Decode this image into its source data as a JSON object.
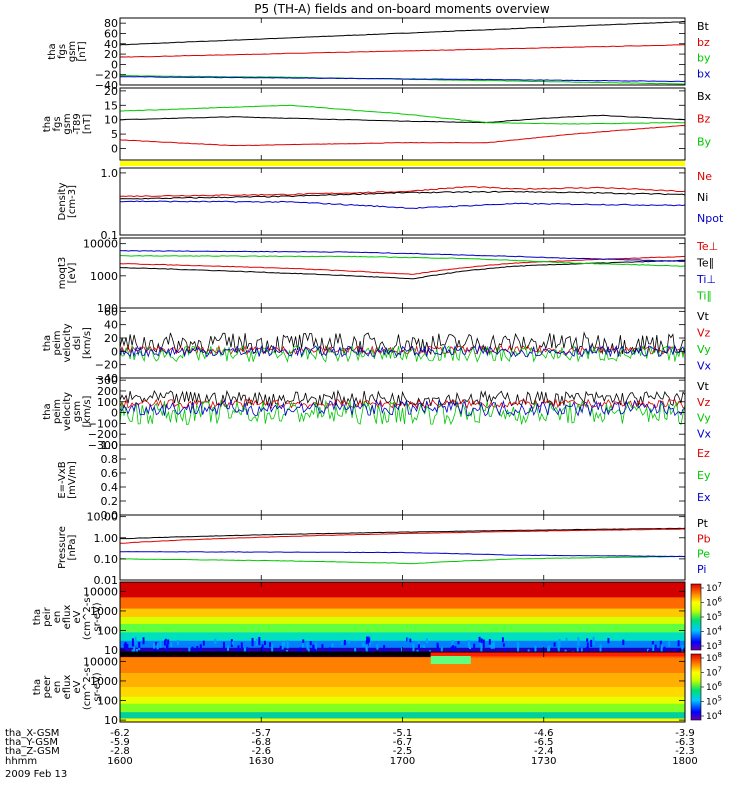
{
  "title": "P5 (TH-A) fields and on-board moments overview",
  "date": "2009 Feb 13",
  "chart_data": {
    "type": "multi-panel-timeseries",
    "x": {
      "label": "hhmm",
      "ticks": [
        "1600",
        "1630",
        "1700",
        "1730",
        "1800"
      ]
    },
    "position_rows": [
      {
        "label": "tha_X-GSM",
        "values": [
          "-6.2",
          "-5.7",
          "-5.1",
          "-4.6",
          "-3.9"
        ]
      },
      {
        "label": "tha_Y-GSM",
        "values": [
          "-5.9",
          "-6.8",
          "-6.7",
          "-6.5",
          "-6.3"
        ]
      },
      {
        "label": "tha_Z-GSM",
        "values": [
          "-2.8",
          "-2.6",
          "-2.5",
          "-2.4",
          "-2.3"
        ]
      }
    ],
    "panels": [
      {
        "ylabel": [
          "tha",
          "fgs",
          "gsm",
          "[nT]"
        ],
        "scale": "linear",
        "ylim": [
          -40,
          90
        ],
        "yticks": [
          {
            "v": 80,
            "t": "80"
          },
          {
            "v": 60,
            "t": "60"
          },
          {
            "v": 40,
            "t": "40"
          },
          {
            "v": 20,
            "t": "20"
          },
          {
            "v": 0,
            "t": "0"
          },
          {
            "v": -20,
            "t": "−20"
          },
          {
            "v": -40,
            "t": "−40"
          }
        ],
        "series": [
          {
            "name": "Bt",
            "color": "#000000",
            "x": [
              0,
              1
            ],
            "y": [
              38,
              83
            ]
          },
          {
            "name": "bz",
            "color": "#dd0000",
            "x": [
              0,
              1
            ],
            "y": [
              14,
              38
            ]
          },
          {
            "name": "by",
            "color": "#00c800",
            "x": [
              0,
              0.3,
              1
            ],
            "y": [
              -22,
              -25,
              -38
            ]
          },
          {
            "name": "bx",
            "color": "#0000cc",
            "x": [
              0,
              0.5,
              1
            ],
            "y": [
              -24,
              -28,
              -33
            ]
          }
        ]
      },
      {
        "ylabel": [
          "tha",
          "fgs",
          "gsm",
          "-T89",
          "[nT]"
        ],
        "scale": "linear",
        "ylim": [
          -4,
          21
        ],
        "yticks": [
          {
            "v": 20,
            "t": "20"
          },
          {
            "v": 15,
            "t": "15"
          },
          {
            "v": 10,
            "t": "10"
          },
          {
            "v": 5,
            "t": "5"
          },
          {
            "v": 0,
            "t": "0"
          }
        ],
        "series": [
          {
            "name": "Bx",
            "color": "#000000",
            "x": [
              0,
              0.2,
              0.5,
              0.65,
              0.75,
              0.85,
              1
            ],
            "y": [
              10,
              11,
              9.5,
              9,
              10.5,
              11.5,
              10
            ]
          },
          {
            "name": "Bz",
            "color": "#dd0000",
            "x": [
              0,
              0.2,
              0.5,
              0.65,
              0.8,
              1
            ],
            "y": [
              3,
              1,
              2,
              2,
              5,
              8
            ]
          },
          {
            "name": "By",
            "color": "#00c800",
            "x": [
              0,
              0.3,
              0.5,
              0.65,
              0.8,
              1
            ],
            "y": [
              13,
              15,
              12,
              9,
              8.5,
              9
            ]
          }
        ]
      },
      {
        "ylabel": [
          "Density",
          "[cm-3]"
        ],
        "scale": "log",
        "ylim": [
          0.1,
          1.2
        ],
        "yticks": [
          {
            "v": 1.0,
            "t": "1.0"
          },
          {
            "v": 0.1,
            "t": "0.1"
          }
        ],
        "series": [
          {
            "name": "Ne",
            "color": "#dd0000",
            "x": [
              0,
              0.3,
              0.5,
              0.62,
              0.7,
              0.85,
              1
            ],
            "y": [
              0.42,
              0.45,
              0.5,
              0.6,
              0.55,
              0.58,
              0.5
            ]
          },
          {
            "name": "Ni",
            "color": "#000000",
            "x": [
              0,
              0.3,
              0.5,
              0.7,
              1
            ],
            "y": [
              0.38,
              0.42,
              0.48,
              0.5,
              0.45
            ]
          },
          {
            "name": "Npot",
            "color": "#0000cc",
            "x": [
              0,
              0.3,
              0.52,
              0.7,
              1
            ],
            "y": [
              0.35,
              0.34,
              0.27,
              0.32,
              0.3
            ]
          }
        ]
      },
      {
        "ylabel": [
          "moqt3",
          "[eV]"
        ],
        "scale": "log",
        "ylim": [
          100,
          15000
        ],
        "yticks": [
          {
            "v": 10000,
            "t": "10000"
          },
          {
            "v": 1000,
            "t": "1000"
          },
          {
            "v": 100,
            "t": "100"
          }
        ],
        "series": [
          {
            "name": "Te⊥",
            "color": "#dd0000",
            "x": [
              0,
              0.3,
              0.52,
              0.7,
              1
            ],
            "y": [
              2400,
              1700,
              1100,
              2500,
              4000
            ]
          },
          {
            "name": "Te∥",
            "color": "#000000",
            "x": [
              0,
              0.3,
              0.52,
              0.7,
              1
            ],
            "y": [
              1800,
              1200,
              800,
              2000,
              3000
            ]
          },
          {
            "name": "Ti⊥",
            "color": "#0000cc",
            "x": [
              0,
              0.4,
              0.6,
              0.8,
              1
            ],
            "y": [
              6000,
              5500,
              4500,
              3500,
              2800
            ]
          },
          {
            "name": "Ti∥",
            "color": "#00c800",
            "x": [
              0,
              0.4,
              0.6,
              0.8,
              1
            ],
            "y": [
              4200,
              4000,
              3500,
              2500,
              2000
            ]
          }
        ]
      },
      {
        "ylabel": [
          "tha",
          "peim",
          "velocity",
          "dsl",
          "[km/s]"
        ],
        "scale": "linear",
        "ylim": [
          -40,
          65
        ],
        "yticks": [
          {
            "v": 60,
            "t": "60"
          },
          {
            "v": 40,
            "t": "40"
          },
          {
            "v": 20,
            "t": "20"
          },
          {
            "v": 0,
            "t": "0"
          },
          {
            "v": -20,
            "t": "−20"
          },
          {
            "v": -40,
            "t": "−40"
          }
        ],
        "noise": [
          {
            "name": "Vt",
            "color": "#000000",
            "mean": 12,
            "amp": 16
          },
          {
            "name": "Vz",
            "color": "#dd0000",
            "mean": 2,
            "amp": 6
          },
          {
            "name": "Vy",
            "color": "#00c800",
            "mean": -4,
            "amp": 12
          },
          {
            "name": "Vx",
            "color": "#0000cc",
            "mean": 0,
            "amp": 8
          }
        ]
      },
      {
        "ylabel": [
          "tha",
          "peim",
          "velocity",
          "gsm",
          "[km/s]"
        ],
        "scale": "linear",
        "ylim": [
          -300,
          320
        ],
        "yticks": [
          {
            "v": 300,
            "t": "300"
          },
          {
            "v": 200,
            "t": "200"
          },
          {
            "v": 100,
            "t": "100"
          },
          {
            "v": 0,
            "t": "0"
          },
          {
            "v": -100,
            "t": "−100"
          },
          {
            "v": -200,
            "t": "−200"
          },
          {
            "v": -300,
            "t": "−300"
          }
        ],
        "noise": [
          {
            "name": "Vt",
            "color": "#000000",
            "mean": 130,
            "amp": 70
          },
          {
            "name": "Vz",
            "color": "#dd0000",
            "mean": 80,
            "amp": 40
          },
          {
            "name": "Vy",
            "color": "#00c800",
            "mean": 0,
            "amp": 110
          },
          {
            "name": "Vx",
            "color": "#0000cc",
            "mean": 40,
            "amp": 70
          }
        ]
      },
      {
        "ylabel": [
          "E=-VxB",
          "[mV/m]"
        ],
        "scale": "linear",
        "ylim": [
          0,
          1.0
        ],
        "yticks": [
          {
            "v": 1.0,
            "t": "1.0"
          },
          {
            "v": 0.8,
            "t": "0.8"
          },
          {
            "v": 0.6,
            "t": "0.6"
          },
          {
            "v": 0.4,
            "t": "0.4"
          },
          {
            "v": 0.2,
            "t": "0.2"
          },
          {
            "v": 0.0,
            "t": "0.0"
          }
        ],
        "legend_only": [
          {
            "name": "Ez",
            "color": "#dd0000"
          },
          {
            "name": "Ey",
            "color": "#00c800"
          },
          {
            "name": "Ex",
            "color": "#0000cc"
          }
        ]
      },
      {
        "ylabel": [
          "Pressure",
          "[nPa]"
        ],
        "scale": "log",
        "ylim": [
          0.01,
          12
        ],
        "yticks": [
          {
            "v": 10,
            "t": "10.00"
          },
          {
            "v": 1,
            "t": "1.00"
          },
          {
            "v": 0.1,
            "t": "0.10"
          },
          {
            "v": 0.01,
            "t": "0.01"
          }
        ],
        "series": [
          {
            "name": "Pt",
            "color": "#000000",
            "x": [
              0,
              1
            ],
            "y": [
              0.9,
              2.8
            ]
          },
          {
            "name": "Pb",
            "color": "#dd0000",
            "x": [
              0,
              1
            ],
            "y": [
              0.55,
              2.6
            ]
          },
          {
            "name": "Pe",
            "color": "#00c800",
            "x": [
              0,
              0.3,
              0.52,
              0.7,
              1
            ],
            "y": [
              0.1,
              0.08,
              0.06,
              0.1,
              0.13
            ]
          },
          {
            "name": "Pi",
            "color": "#0000cc",
            "x": [
              0,
              0.5,
              0.7,
              1
            ],
            "y": [
              0.22,
              0.2,
              0.15,
              0.13
            ]
          }
        ]
      },
      {
        "type": "heatmap",
        "ylabel": [
          "tha",
          "peir",
          "en",
          "eflux",
          "eV",
          "(cm^2-s-",
          "sr-eV)"
        ],
        "yticks": [
          {
            "v": 10000,
            "t": "10000"
          },
          {
            "v": 1000,
            "t": "1000"
          },
          {
            "v": 100,
            "t": "100"
          },
          {
            "v": 10,
            "t": "10"
          }
        ],
        "ylim": [
          8,
          30000
        ],
        "colorbar": {
          "ticks": [
            "10^7",
            "10^6",
            "10^5",
            "10^4",
            "10^3"
          ]
        }
      },
      {
        "type": "heatmap",
        "ylabel": [
          "tha",
          "peer",
          "en",
          "eflux",
          "eV",
          "(cm^2-s-",
          "sr-eV)"
        ],
        "yticks": [
          {
            "v": 10000,
            "t": "10000"
          },
          {
            "v": 1000,
            "t": "1000"
          },
          {
            "v": 100,
            "t": "100"
          },
          {
            "v": 10,
            "t": "10"
          }
        ],
        "ylim": [
          8,
          30000
        ],
        "colorbar": {
          "ticks": [
            "10^8",
            "10^7",
            "10^6",
            "10^5",
            "10^4"
          ]
        }
      }
    ]
  }
}
